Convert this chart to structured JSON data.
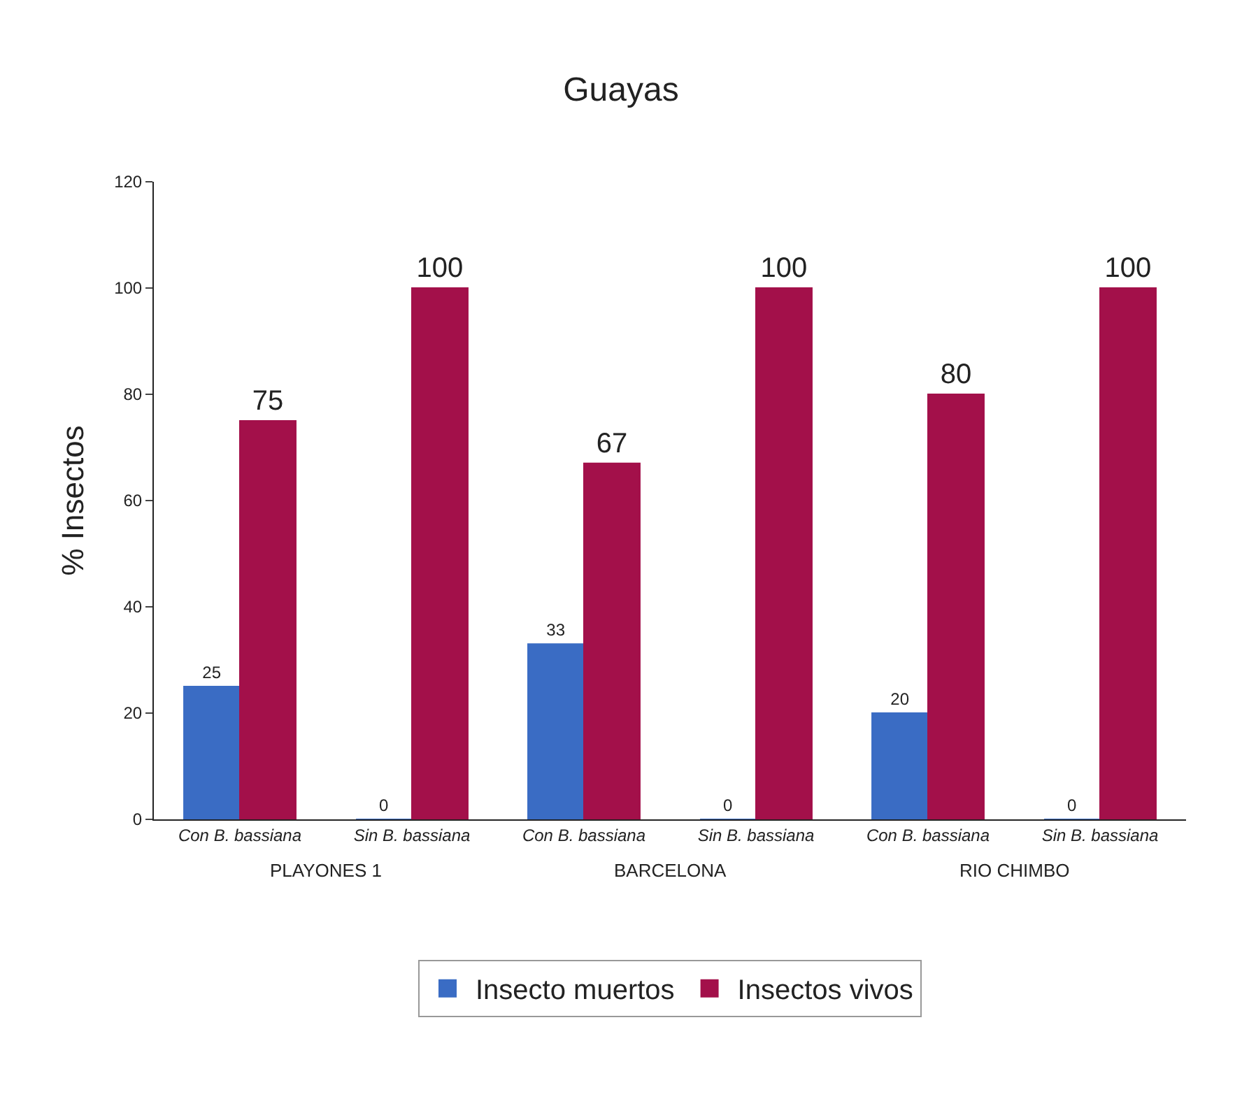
{
  "chart_data": {
    "type": "bar",
    "title": "Guayas",
    "ylabel": "% Insectos",
    "categories": [
      "Con B. bassiana",
      "Sin B. bassiana",
      "Con B. bassiana",
      "Sin B. bassiana",
      "Con B. bassiana",
      "Sin B. bassiana"
    ],
    "annotations": [
      "PLAYONES 1",
      "BARCELONA",
      "RIO CHIMBO"
    ],
    "series": [
      {
        "name": "Insecto muertos",
        "color": "#3a6cc4",
        "values": [
          25,
          0,
          33,
          0,
          20,
          0
        ]
      },
      {
        "name": "Insectos vivos",
        "color": "#a3104a",
        "values": [
          75,
          100,
          67,
          100,
          80,
          100
        ]
      }
    ],
    "ylim": [
      0,
      120
    ],
    "yticks": [
      0,
      20,
      40,
      60,
      80,
      100,
      120
    ],
    "data_labels": true,
    "grid": false,
    "legend": "bottom"
  }
}
